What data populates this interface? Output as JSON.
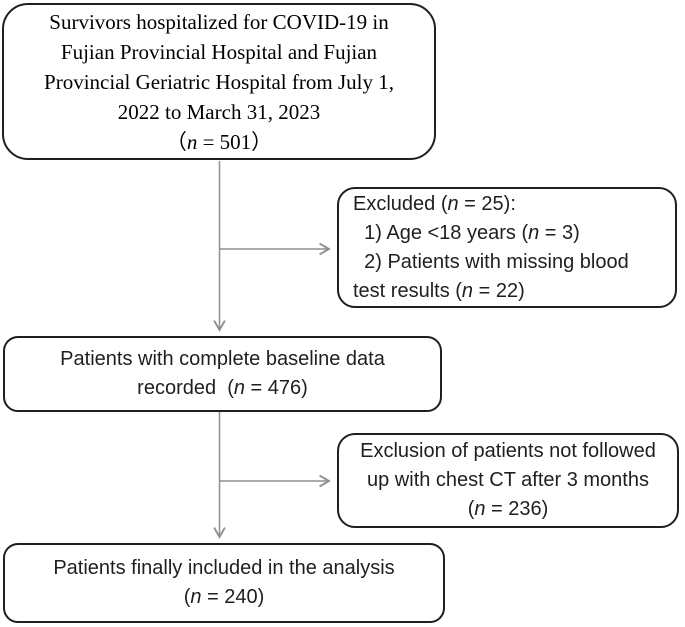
{
  "colors": {
    "box-border": "#1f1f1f",
    "arrow": "#8f8f8f",
    "text": "#1f1f1f"
  },
  "flowchart": {
    "boxes": {
      "source": {
        "lines": [
          "Survivors hospitalized for COVID-19 in",
          "Fujian Provincial Hospital and Fujian",
          "Provincial Geriatric Hospital from July 1,",
          "2022 to March 31, 2023",
          "（n = 501）"
        ],
        "n": 501
      },
      "excluded": {
        "lines": [
          "Excluded (n = 25):",
          "  1) Age <18 years (n = 3)",
          "  2) Patients with missing blood",
          "test results (n = 22)"
        ],
        "n": 25
      },
      "baseline": {
        "lines": [
          "Patients with complete baseline data",
          "recorded  (n = 476)"
        ],
        "n": 476
      },
      "ct_exclusion": {
        "lines": [
          "Exclusion of patients not followed",
          "up with chest CT after 3 months",
          "(n = 236)"
        ],
        "n": 236
      },
      "final": {
        "lines": [
          "Patients finally included in the analysis",
          "(n = 240)"
        ],
        "n": 240
      }
    }
  }
}
